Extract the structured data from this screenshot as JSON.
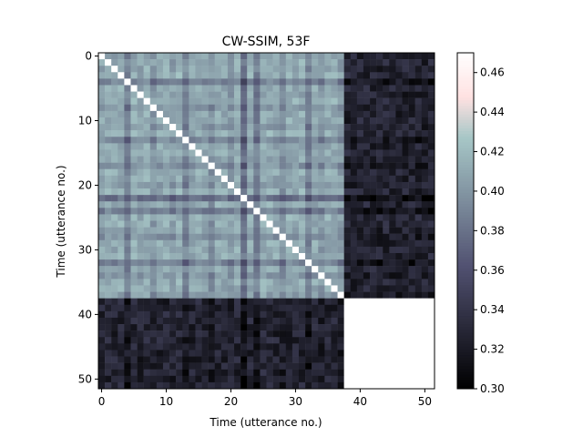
{
  "chart_data": {
    "type": "heatmap",
    "title": "CW-SSIM, 53F",
    "xlabel": "Time (utterance no.)",
    "ylabel": "Time (utterance no.)",
    "n": 52,
    "block_boundary": 38,
    "x_ticks": [
      0,
      10,
      20,
      30,
      40,
      50
    ],
    "y_ticks": [
      0,
      10,
      20,
      30,
      40,
      50
    ],
    "colorbar": {
      "min": 0.3,
      "max": 0.47,
      "ticks": [
        "0.30",
        "0.32",
        "0.34",
        "0.36",
        "0.38",
        "0.40",
        "0.42",
        "0.44",
        "0.46"
      ]
    },
    "colormap": "bone",
    "block_means": {
      "within_first_block": 0.405,
      "cross_blocks": 0.325,
      "within_second_block": 0.47,
      "diagonal": 0.47
    },
    "row_effects_first_block": [
      0.0,
      0.004,
      0.003,
      0.005,
      -0.018,
      0.004,
      0.0,
      0.006,
      -0.006,
      0.003,
      0.004,
      -0.004,
      0.006,
      -0.014,
      0.002,
      0.004,
      0.0,
      -0.01,
      0.004,
      0.002,
      -0.004,
      0.006,
      -0.028,
      0.004,
      -0.02,
      0.006,
      0.004,
      0.002,
      -0.01,
      0.004,
      0.003,
      0.005,
      -0.018,
      0.002,
      -0.006,
      0.004,
      0.003,
      -0.004
    ]
  }
}
